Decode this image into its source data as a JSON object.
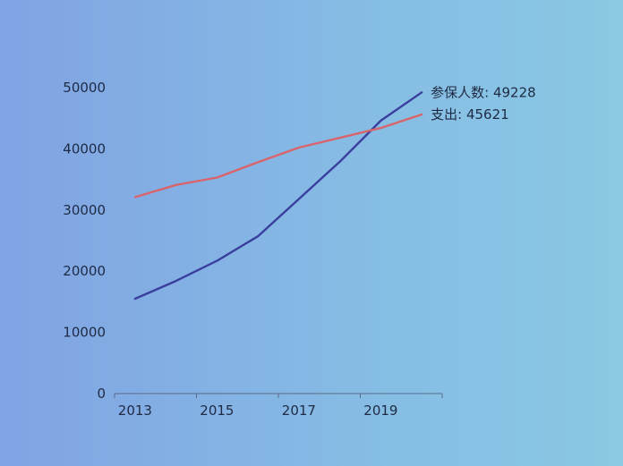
{
  "chart_data": {
    "type": "line",
    "title": "",
    "xlabel": "",
    "ylabel": "",
    "x": [
      2013,
      2014,
      2015,
      2016,
      2017,
      2018,
      2019,
      2020
    ],
    "x_tick_labels": [
      "2013",
      "2015",
      "2017",
      "2019"
    ],
    "y_tick_labels": [
      "0",
      "10000",
      "20000",
      "30000",
      "40000",
      "50000"
    ],
    "xlim": [
      2012.5,
      2020.5
    ],
    "ylim": [
      0,
      50000
    ],
    "grid": false,
    "legend": "none",
    "series": [
      {
        "name": "参保人数",
        "color": "#3a3f9e",
        "values": [
          15500,
          18400,
          21700,
          25700,
          31800,
          37900,
          44600,
          49228
        ],
        "end_label": "参保人数: 49228"
      },
      {
        "name": "支出",
        "color": "#d9646c",
        "values": [
          32100,
          34100,
          35300,
          37800,
          40200,
          41800,
          43400,
          45621
        ],
        "end_label": "支出: 45621"
      }
    ]
  }
}
